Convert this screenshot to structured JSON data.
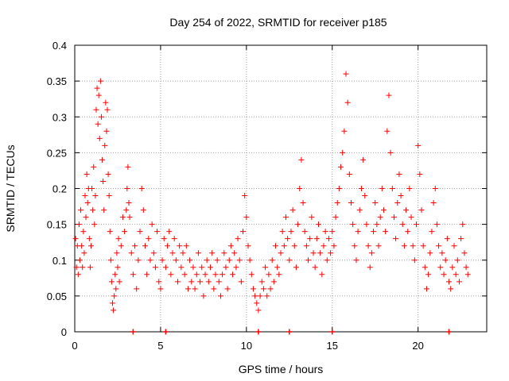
{
  "chart_data": {
    "type": "scatter",
    "title": "Day 254 of 2022, SRMTID for receiver p185",
    "xlabel": "GPS time / hours",
    "ylabel": "SRMTID / TECUs",
    "xlim": [
      0,
      24
    ],
    "ylim": [
      0,
      0.4
    ],
    "grid": true,
    "marker": "+",
    "color": "#ff0000",
    "xticks": [
      0,
      5,
      10,
      15,
      20
    ],
    "xtick_labels": [
      "0",
      "5",
      "10",
      "15",
      "20"
    ],
    "yticks": [
      0,
      0.05,
      0.1,
      0.15,
      0.2,
      0.25,
      0.3,
      0.35,
      0.4
    ],
    "ytick_labels": [
      "0",
      "0.05",
      "0.1",
      "0.15",
      "0.2",
      "0.25",
      "0.3",
      "0.35",
      "0.4"
    ],
    "series": [
      {
        "name": "SRMTID",
        "points": [
          [
            0.05,
            0.13
          ],
          [
            0.1,
            0.09
          ],
          [
            0.15,
            0.12
          ],
          [
            0.2,
            0.08
          ],
          [
            0.25,
            0.15
          ],
          [
            0.3,
            0.1
          ],
          [
            0.35,
            0.17
          ],
          [
            0.4,
            0.12
          ],
          [
            0.45,
            0.09
          ],
          [
            0.5,
            0.14
          ],
          [
            0.55,
            0.11
          ],
          [
            0.6,
            0.19
          ],
          [
            0.65,
            0.16
          ],
          [
            0.7,
            0.22
          ],
          [
            0.75,
            0.18
          ],
          [
            0.8,
            0.2
          ],
          [
            0.85,
            0.13
          ],
          [
            0.9,
            0.09
          ],
          [
            0.95,
            0.12
          ],
          [
            1.0,
            0.2
          ],
          [
            1.05,
            0.17
          ],
          [
            1.1,
            0.23
          ],
          [
            1.15,
            0.15
          ],
          [
            1.2,
            0.19
          ],
          [
            1.25,
            0.31
          ],
          [
            1.3,
            0.34
          ],
          [
            1.35,
            0.29
          ],
          [
            1.4,
            0.33
          ],
          [
            1.45,
            0.27
          ],
          [
            1.5,
            0.35
          ],
          [
            1.55,
            0.3
          ],
          [
            1.6,
            0.24
          ],
          [
            1.65,
            0.21
          ],
          [
            1.7,
            0.17
          ],
          [
            1.75,
            0.26
          ],
          [
            1.8,
            0.32
          ],
          [
            1.85,
            0.28
          ],
          [
            1.9,
            0.31
          ],
          [
            1.95,
            0.22
          ],
          [
            2.0,
            0.19
          ],
          [
            2.05,
            0.14
          ],
          [
            2.1,
            0.1
          ],
          [
            2.15,
            0.07
          ],
          [
            2.2,
            0.04
          ],
          [
            2.25,
            0.03
          ],
          [
            2.3,
            0.05
          ],
          [
            2.35,
            0.08
          ],
          [
            2.4,
            0.06
          ],
          [
            2.45,
            0.11
          ],
          [
            2.5,
            0.09
          ],
          [
            2.55,
            0.13
          ],
          [
            2.6,
            0.07
          ],
          [
            2.7,
            0.12
          ],
          [
            2.8,
            0.16
          ],
          [
            2.9,
            0.14
          ],
          [
            3.0,
            0.17
          ],
          [
            3.05,
            0.2
          ],
          [
            3.1,
            0.23
          ],
          [
            3.15,
            0.18
          ],
          [
            3.2,
            0.16
          ],
          [
            3.3,
            0.11
          ],
          [
            3.4,
            0.08
          ],
          [
            3.5,
            0.12
          ],
          [
            3.6,
            0.06
          ],
          [
            3.7,
            0.1
          ],
          [
            3.8,
            0.14
          ],
          [
            3.9,
            0.2
          ],
          [
            4.0,
            0.17
          ],
          [
            4.1,
            0.12
          ],
          [
            4.2,
            0.08
          ],
          [
            4.3,
            0.13
          ],
          [
            4.4,
            0.1
          ],
          [
            4.5,
            0.15
          ],
          [
            4.6,
            0.11
          ],
          [
            4.7,
            0.09
          ],
          [
            4.8,
            0.14
          ],
          [
            4.9,
            0.07
          ],
          [
            5.0,
            0.06
          ],
          [
            5.1,
            0.1
          ],
          [
            5.2,
            0.13
          ],
          [
            5.3,
            0.09
          ],
          [
            5.4,
            0.12
          ],
          [
            5.5,
            0.14
          ],
          [
            5.6,
            0.08
          ],
          [
            5.7,
            0.11
          ],
          [
            5.8,
            0.13
          ],
          [
            5.9,
            0.1
          ],
          [
            6.0,
            0.07
          ],
          [
            6.1,
            0.12
          ],
          [
            6.2,
            0.09
          ],
          [
            6.3,
            0.11
          ],
          [
            6.4,
            0.08
          ],
          [
            6.5,
            0.12
          ],
          [
            6.6,
            0.06
          ],
          [
            6.7,
            0.1
          ],
          [
            6.8,
            0.07
          ],
          [
            6.9,
            0.09
          ],
          [
            7.0,
            0.06
          ],
          [
            7.1,
            0.08
          ],
          [
            7.2,
            0.11
          ],
          [
            7.3,
            0.07
          ],
          [
            7.4,
            0.09
          ],
          [
            7.5,
            0.05
          ],
          [
            7.6,
            0.08
          ],
          [
            7.7,
            0.1
          ],
          [
            7.8,
            0.07
          ],
          [
            7.9,
            0.09
          ],
          [
            8.0,
            0.11
          ],
          [
            8.1,
            0.06
          ],
          [
            8.2,
            0.08
          ],
          [
            8.3,
            0.1
          ],
          [
            8.4,
            0.07
          ],
          [
            8.5,
            0.05
          ],
          [
            8.6,
            0.08
          ],
          [
            8.7,
            0.11
          ],
          [
            8.8,
            0.09
          ],
          [
            8.9,
            0.06
          ],
          [
            9.0,
            0.1
          ],
          [
            9.1,
            0.12
          ],
          [
            9.2,
            0.08
          ],
          [
            9.3,
            0.11
          ],
          [
            9.4,
            0.09
          ],
          [
            9.5,
            0.13
          ],
          [
            9.6,
            0.1
          ],
          [
            9.7,
            0.07
          ],
          [
            9.8,
            0.14
          ],
          [
            9.9,
            0.19
          ],
          [
            10.0,
            0.16
          ],
          [
            10.1,
            0.12
          ],
          [
            10.2,
            0.1
          ],
          [
            10.3,
            0.08
          ],
          [
            10.4,
            0.06
          ],
          [
            10.5,
            0.05
          ],
          [
            10.6,
            0.04
          ],
          [
            10.7,
            0.03
          ],
          [
            10.8,
            0.05
          ],
          [
            10.9,
            0.07
          ],
          [
            11.0,
            0.06
          ],
          [
            11.1,
            0.09
          ],
          [
            11.2,
            0.05
          ],
          [
            11.3,
            0.08
          ],
          [
            11.4,
            0.06
          ],
          [
            11.5,
            0.1
          ],
          [
            11.6,
            0.07
          ],
          [
            11.7,
            0.12
          ],
          [
            11.8,
            0.09
          ],
          [
            11.9,
            0.08
          ],
          [
            12.0,
            0.11
          ],
          [
            12.1,
            0.14
          ],
          [
            12.2,
            0.12
          ],
          [
            12.3,
            0.16
          ],
          [
            12.4,
            0.13
          ],
          [
            12.5,
            0.1
          ],
          [
            12.6,
            0.14
          ],
          [
            12.7,
            0.17
          ],
          [
            12.8,
            0.12
          ],
          [
            12.9,
            0.09
          ],
          [
            13.0,
            0.15
          ],
          [
            13.1,
            0.2
          ],
          [
            13.2,
            0.24
          ],
          [
            13.3,
            0.18
          ],
          [
            13.4,
            0.14
          ],
          [
            13.5,
            0.12
          ],
          [
            13.6,
            0.1
          ],
          [
            13.7,
            0.13
          ],
          [
            13.8,
            0.16
          ],
          [
            13.9,
            0.11
          ],
          [
            14.0,
            0.09
          ],
          [
            14.1,
            0.13
          ],
          [
            14.2,
            0.15
          ],
          [
            14.3,
            0.11
          ],
          [
            14.4,
            0.08
          ],
          [
            14.5,
            0.12
          ],
          [
            14.6,
            0.14
          ],
          [
            14.7,
            0.1
          ],
          [
            14.8,
            0.13
          ],
          [
            14.9,
            0.11
          ],
          [
            15.0,
            0.14
          ],
          [
            15.1,
            0.12
          ],
          [
            15.2,
            0.16
          ],
          [
            15.3,
            0.18
          ],
          [
            15.4,
            0.2
          ],
          [
            15.5,
            0.23
          ],
          [
            15.6,
            0.25
          ],
          [
            15.7,
            0.28
          ],
          [
            15.8,
            0.36
          ],
          [
            15.9,
            0.32
          ],
          [
            16.0,
            0.22
          ],
          [
            16.1,
            0.18
          ],
          [
            16.2,
            0.15
          ],
          [
            16.3,
            0.12
          ],
          [
            16.4,
            0.1
          ],
          [
            16.5,
            0.14
          ],
          [
            16.6,
            0.17
          ],
          [
            16.7,
            0.2
          ],
          [
            16.8,
            0.24
          ],
          [
            16.9,
            0.19
          ],
          [
            17.0,
            0.15
          ],
          [
            17.1,
            0.12
          ],
          [
            17.2,
            0.09
          ],
          [
            17.3,
            0.11
          ],
          [
            17.4,
            0.14
          ],
          [
            17.5,
            0.18
          ],
          [
            17.6,
            0.15
          ],
          [
            17.7,
            0.12
          ],
          [
            17.8,
            0.16
          ],
          [
            17.9,
            0.2
          ],
          [
            18.0,
            0.17
          ],
          [
            18.1,
            0.14
          ],
          [
            18.2,
            0.28
          ],
          [
            18.3,
            0.33
          ],
          [
            18.4,
            0.25
          ],
          [
            18.5,
            0.2
          ],
          [
            18.6,
            0.16
          ],
          [
            18.7,
            0.13
          ],
          [
            18.8,
            0.18
          ],
          [
            18.9,
            0.22
          ],
          [
            19.0,
            0.19
          ],
          [
            19.1,
            0.15
          ],
          [
            19.2,
            0.12
          ],
          [
            19.3,
            0.17
          ],
          [
            19.4,
            0.14
          ],
          [
            19.5,
            0.2
          ],
          [
            19.6,
            0.16
          ],
          [
            19.7,
            0.12
          ],
          [
            19.8,
            0.1
          ],
          [
            19.9,
            0.15
          ],
          [
            20.0,
            0.26
          ],
          [
            20.1,
            0.22
          ],
          [
            20.2,
            0.17
          ],
          [
            20.3,
            0.12
          ],
          [
            20.4,
            0.09
          ],
          [
            20.5,
            0.06
          ],
          [
            20.6,
            0.08
          ],
          [
            20.7,
            0.11
          ],
          [
            20.8,
            0.14
          ],
          [
            20.9,
            0.18
          ],
          [
            21.0,
            0.2
          ],
          [
            21.1,
            0.15
          ],
          [
            21.2,
            0.12
          ],
          [
            21.3,
            0.09
          ],
          [
            21.4,
            0.11
          ],
          [
            21.5,
            0.08
          ],
          [
            21.6,
            0.1
          ],
          [
            21.7,
            0.13
          ],
          [
            21.8,
            0.07
          ],
          [
            21.9,
            0.06
          ],
          [
            22.0,
            0.09
          ],
          [
            22.1,
            0.12
          ],
          [
            22.2,
            0.08
          ],
          [
            22.3,
            0.1
          ],
          [
            22.4,
            0.07
          ],
          [
            22.5,
            0.13
          ],
          [
            22.6,
            0.15
          ],
          [
            22.7,
            0.11
          ],
          [
            22.8,
            0.09
          ],
          [
            22.9,
            0.08
          ]
        ]
      }
    ],
    "zero_markers_x": [
      3.4,
      5.3,
      10.7,
      12.5,
      15.0,
      21.8
    ]
  }
}
